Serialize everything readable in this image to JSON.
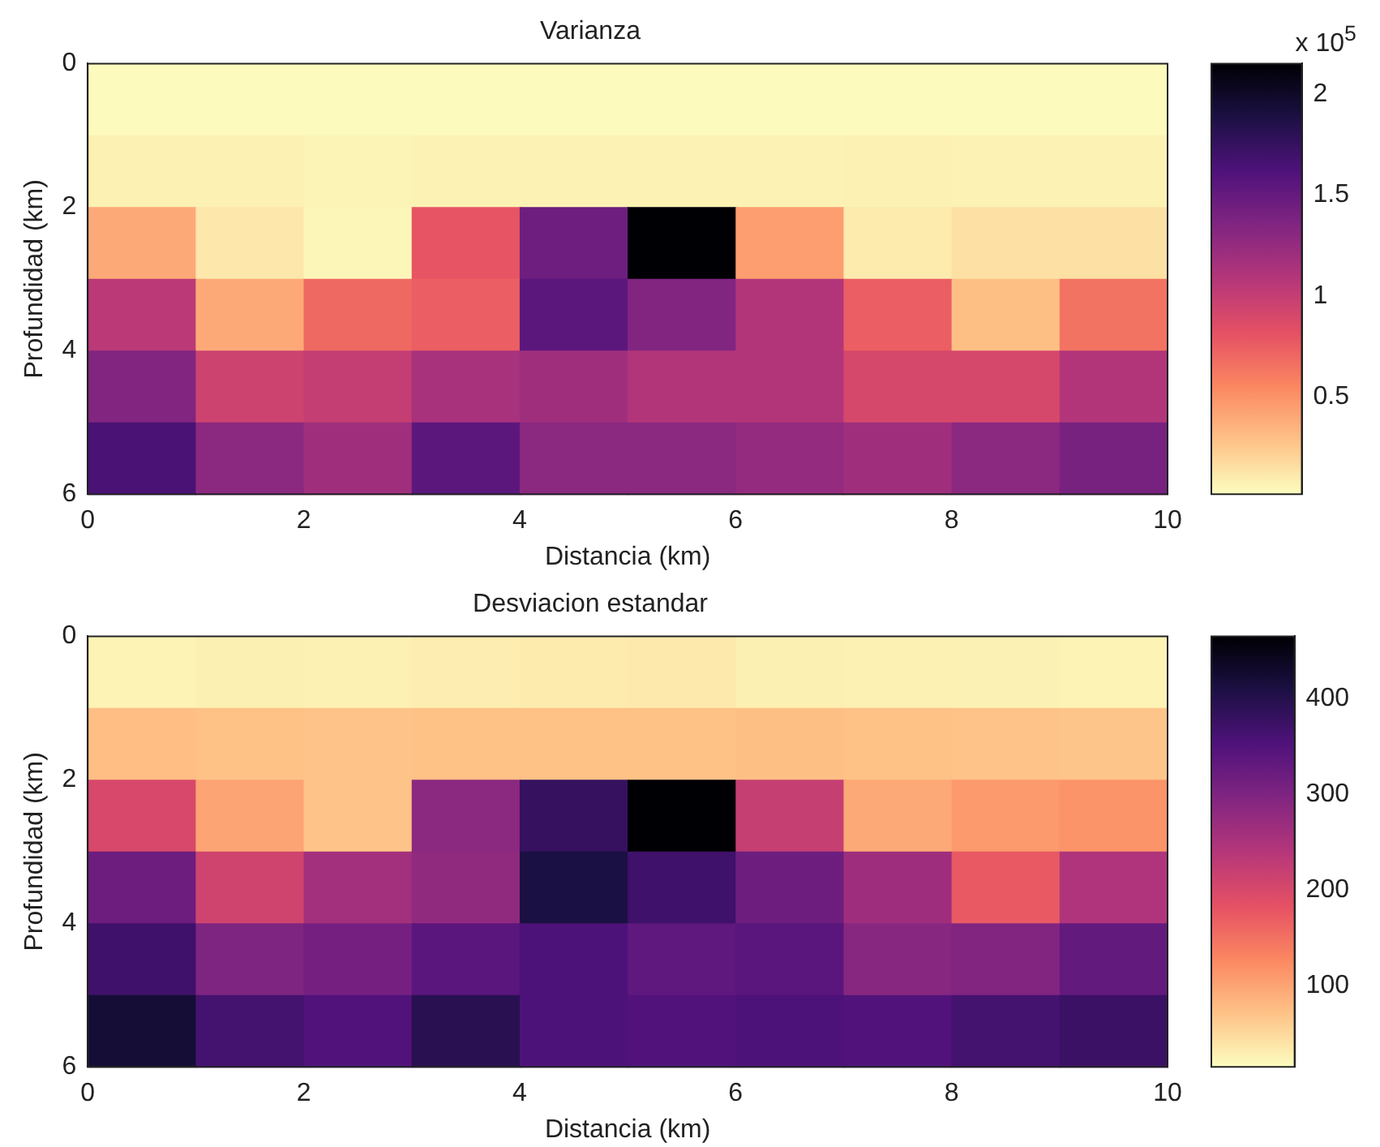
{
  "chart_data": [
    {
      "type": "heatmap",
      "title": "Varianza",
      "xlabel": "Distancia (km)",
      "ylabel": "Profundidad (km)",
      "clabel": "x 10$^{5}$",
      "x": [
        0.5,
        1.5,
        2.5,
        3.5,
        4.5,
        5.5,
        6.5,
        7.5,
        8.5,
        9.5
      ],
      "y": [
        0.5,
        1.5,
        2.5,
        3.5,
        4.5,
        5.5
      ],
      "xlim": [
        0,
        10
      ],
      "xticks": [
        0,
        2,
        4,
        6,
        8,
        10
      ],
      "ylim": [
        6,
        0
      ],
      "yticks": [
        0,
        2,
        4,
        6
      ],
      "clim": [
        0.02,
        2.15
      ],
      "cticks": [
        0.5,
        1,
        1.5,
        2
      ],
      "cells": [
        [
          0.03,
          0.03,
          0.03,
          0.03,
          0.03,
          0.03,
          0.03,
          0.03,
          0.03,
          0.03
        ],
        [
          0.08,
          0.08,
          0.06,
          0.07,
          0.07,
          0.07,
          0.07,
          0.08,
          0.07,
          0.07
        ],
        [
          0.4,
          0.12,
          0.05,
          0.8,
          1.45,
          2.15,
          0.45,
          0.1,
          0.15,
          0.15
        ],
        [
          1.05,
          0.4,
          0.7,
          0.75,
          1.55,
          1.35,
          1.1,
          0.75,
          0.3,
          0.65
        ],
        [
          1.35,
          0.95,
          1.0,
          1.15,
          1.2,
          1.1,
          1.1,
          0.9,
          0.9,
          1.1
        ],
        [
          1.65,
          1.3,
          1.2,
          1.55,
          1.3,
          1.3,
          1.25,
          1.2,
          1.3,
          1.4
        ]
      ]
    },
    {
      "type": "heatmap",
      "title": "Desviacion estandar",
      "xlabel": "Distancia (km)",
      "ylabel": "Profundidad (km)",
      "x": [
        0.5,
        1.5,
        2.5,
        3.5,
        4.5,
        5.5,
        6.5,
        7.5,
        8.5,
        9.5
      ],
      "y": [
        0.5,
        1.5,
        2.5,
        3.5,
        4.5,
        5.5
      ],
      "xlim": [
        0,
        10
      ],
      "xticks": [
        0,
        2,
        4,
        6,
        8,
        10
      ],
      "ylim": [
        6,
        0
      ],
      "yticks": [
        0,
        2,
        4,
        6
      ],
      "clim": [
        15,
        465
      ],
      "cticks": [
        100,
        200,
        300,
        400
      ],
      "cells": [
        [
          25,
          28,
          27,
          30,
          32,
          34,
          28,
          27,
          26,
          25
        ],
        [
          75,
          72,
          70,
          72,
          72,
          72,
          74,
          72,
          70,
          68
        ],
        [
          200,
          100,
          70,
          285,
          380,
          465,
          220,
          95,
          110,
          115
        ],
        [
          320,
          210,
          260,
          280,
          410,
          370,
          320,
          265,
          175,
          245
        ],
        [
          370,
          300,
          310,
          340,
          355,
          335,
          340,
          290,
          295,
          330
        ],
        [
          420,
          365,
          350,
          395,
          355,
          350,
          355,
          350,
          365,
          375
        ]
      ]
    }
  ]
}
